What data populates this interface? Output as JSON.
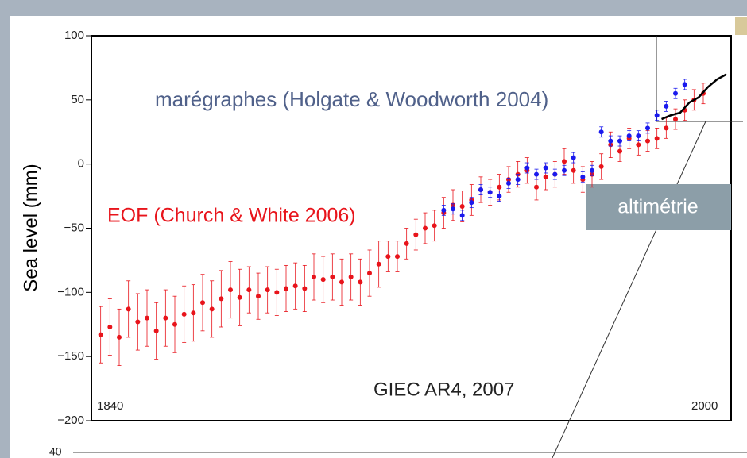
{
  "chart_data": {
    "type": "scatter",
    "ylabel": "Sea level (mm)",
    "xlim": [
      1868,
      2006
    ],
    "ylim": [
      -200,
      100
    ],
    "yticks": [
      100,
      50,
      0,
      {
        "value": -50,
        "label": "−50"
      },
      {
        "value": -100,
        "label": "−100"
      },
      {
        "value": -150,
        "label": "−150"
      },
      {
        "value": -200,
        "label": "−200"
      }
    ],
    "annotations": [
      "marégraphes (Holgate & Woodworth 2004)",
      "EOF (Church & White 2006)",
      "altimétrie",
      "GIEC AR4, 2007",
      "1840",
      "2000"
    ],
    "lower_panel_ytick": "40",
    "series": [
      {
        "color": "#e8141b",
        "marker": "dot",
        "x": [
          1870,
          1872,
          1874,
          1876,
          1878,
          1880,
          1882,
          1884,
          1886,
          1888,
          1890,
          1892,
          1894,
          1896,
          1898,
          1900,
          1902,
          1904,
          1906,
          1908,
          1910,
          1912,
          1914,
          1916,
          1918,
          1920,
          1922,
          1924,
          1926,
          1928,
          1930,
          1932,
          1934,
          1936,
          1938,
          1940,
          1942,
          1944,
          1946,
          1948,
          1950,
          1952,
          1954,
          1956,
          1958,
          1960,
          1962,
          1964,
          1966,
          1968,
          1970,
          1972,
          1974,
          1976,
          1978,
          1980,
          1982,
          1984,
          1986,
          1988,
          1990,
          1992,
          1994,
          1996,
          1998,
          2000
        ],
        "values": [
          -133,
          -127,
          -135,
          -113,
          -123,
          -120,
          -130,
          -120,
          -125,
          -117,
          -116,
          -108,
          -113,
          -105,
          -98,
          -104,
          -98,
          -103,
          -98,
          -100,
          -97,
          -95,
          -97,
          -88,
          -90,
          -88,
          -92,
          -88,
          -92,
          -85,
          -78,
          -72,
          -72,
          -62,
          -55,
          -50,
          -48,
          -38,
          -32,
          -33,
          -28,
          -20,
          -22,
          -18,
          -12,
          -8,
          -5,
          -18,
          -10,
          -8,
          2,
          -5,
          -12,
          -8,
          -2,
          15,
          10,
          20,
          15,
          18,
          20,
          28,
          35,
          42,
          50,
          55
        ],
        "errors": [
          22,
          22,
          22,
          22,
          22,
          22,
          22,
          22,
          22,
          22,
          22,
          22,
          22,
          22,
          22,
          22,
          18,
          18,
          18,
          18,
          18,
          18,
          18,
          18,
          18,
          18,
          18,
          18,
          18,
          18,
          18,
          12,
          12,
          12,
          12,
          12,
          12,
          12,
          12,
          12,
          12,
          10,
          10,
          10,
          10,
          10,
          10,
          10,
          10,
          10,
          10,
          10,
          10,
          10,
          10,
          10,
          8,
          8,
          8,
          8,
          8,
          8,
          8,
          8,
          8,
          8
        ]
      },
      {
        "color": "#1a1aee",
        "marker": "dot",
        "x": [
          1944,
          1946,
          1948,
          1950,
          1952,
          1954,
          1956,
          1958,
          1960,
          1962,
          1964,
          1966,
          1968,
          1970,
          1972,
          1974,
          1976,
          1978,
          1980,
          1982,
          1984,
          1986,
          1988,
          1990,
          1992,
          1994,
          1996
        ],
        "values": [
          -36,
          -35,
          -40,
          -30,
          -20,
          -22,
          -25,
          -15,
          -12,
          -3,
          -8,
          -3,
          -8,
          -5,
          5,
          -10,
          -5,
          25,
          18,
          18,
          22,
          22,
          28,
          38,
          45,
          55,
          62
        ],
        "errors": [
          4,
          4,
          4,
          4,
          4,
          4,
          4,
          4,
          4,
          4,
          4,
          4,
          4,
          4,
          4,
          4,
          4,
          4,
          4,
          4,
          4,
          4,
          4,
          4,
          4,
          4,
          4
        ]
      },
      {
        "color": "#000000",
        "marker": "line",
        "x": [
          1991,
          1993,
          1995,
          1997,
          1999,
          2001,
          2003,
          2005
        ],
        "values": [
          35,
          38,
          40,
          48,
          52,
          60,
          66,
          70
        ]
      }
    ]
  }
}
